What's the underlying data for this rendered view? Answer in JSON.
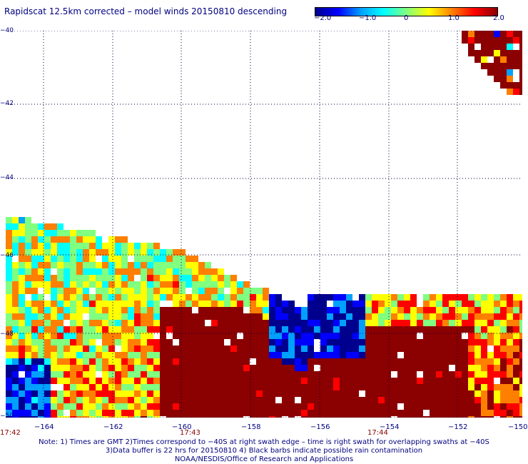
{
  "title": "Rapidscat 12.5km corrected – model winds 20150810 descending",
  "colorbar": {
    "tick_labels": [
      "−2.0",
      "−1.0",
      "0",
      "1.0",
      "2.0"
    ],
    "tick_values": [
      -2.0,
      -1.0,
      0,
      1.0,
      2.0
    ],
    "range": [
      -2.0,
      2.0
    ],
    "colors": [
      "#00008f",
      "#0000ff",
      "#00a0ff",
      "#00ffff",
      "#80ff80",
      "#ffff00",
      "#ff8000",
      "#ff0000",
      "#8b0000"
    ]
  },
  "map": {
    "y_labels": [
      "−40",
      "−42",
      "−44",
      "−46",
      "−48",
      "−50"
    ],
    "x_labels": [
      "−164",
      "−162",
      "−160",
      "−158",
      "−156",
      "−154",
      "−152",
      "−150"
    ],
    "time_labels": [
      "17:42",
      "17:43",
      "17:44"
    ],
    "lon_range": [
      -165,
      -150
    ],
    "lat_range": [
      -50,
      -40
    ]
  },
  "notes": [
    "Note: 1) Times are GMT 2)Times correspond to −40S at right swath edge – time is right swath for overlapping swaths at −40S",
    "3)Data buffer is 22 hrs for 20150810 4) Black barbs indicate possible rain contamination",
    "NOAA/NESDIS/Office of Research and Applications"
  ]
}
